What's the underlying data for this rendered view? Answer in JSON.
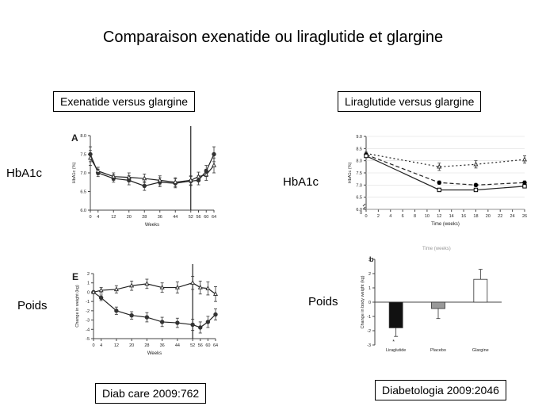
{
  "title": "Comparaison exenatide ou liraglutide  et glargine",
  "left_header": "Exenatide versus glargine",
  "right_header": "Liraglutide  versus glargine",
  "labels": {
    "hba1c_left": "HbA1c",
    "hba1c_right": "HbA1c",
    "poids_left": "Poids",
    "poids_right": "Poids"
  },
  "refs": {
    "left": "Diab care 2009:762",
    "right": "Diabetologia 2009:2046"
  },
  "chart_data": [
    {
      "id": "A",
      "type": "line",
      "panel_letter": "A",
      "xlabel": "Weeks",
      "ylabel": "HbA1c (%)",
      "xlim": [
        0,
        64
      ],
      "ylim": [
        6.0,
        8.0
      ],
      "xticks": [
        0,
        4,
        12,
        20,
        28,
        36,
        44,
        52,
        56,
        60,
        64
      ],
      "xtick_labels": [
        "0",
        "4",
        "12",
        "20",
        "28",
        "36",
        "44",
        "52",
        "56",
        "60",
        "64"
      ],
      "yticks": [
        6.0,
        6.5,
        7.0,
        7.5,
        8.0
      ],
      "ytick_labels": [
        "6.0",
        "6.5",
        "7.0",
        "7.5",
        "8.0"
      ],
      "vline": 52,
      "series": [
        {
          "marker": "circle",
          "x": [
            0,
            4,
            12,
            20,
            28,
            36,
            44,
            52,
            56,
            60,
            64
          ],
          "y": [
            7.5,
            7.0,
            6.85,
            6.8,
            6.65,
            6.75,
            6.72,
            6.78,
            6.8,
            7.05,
            7.5
          ],
          "err": [
            0.2,
            0.1,
            0.1,
            0.12,
            0.12,
            0.12,
            0.12,
            0.12,
            0.12,
            0.15,
            0.2
          ]
        },
        {
          "marker": "triangle",
          "x": [
            0,
            4,
            12,
            20,
            28,
            36,
            44,
            52,
            56,
            60,
            64
          ],
          "y": [
            7.4,
            7.05,
            6.9,
            6.88,
            6.85,
            6.8,
            6.75,
            6.8,
            6.9,
            6.95,
            7.2
          ],
          "err": [
            0.2,
            0.1,
            0.1,
            0.12,
            0.12,
            0.12,
            0.12,
            0.12,
            0.12,
            0.15,
            0.2
          ]
        }
      ]
    },
    {
      "id": "E",
      "type": "line",
      "panel_letter": "E",
      "xlabel": "Weeks",
      "ylabel": "Change in weight (kg)",
      "xlim": [
        0,
        64
      ],
      "ylim": [
        -5,
        2
      ],
      "xticks": [
        0,
        4,
        12,
        20,
        28,
        36,
        44,
        52,
        56,
        60,
        64
      ],
      "xtick_labels": [
        "0",
        "4",
        "12",
        "20",
        "28",
        "36",
        "44",
        "52",
        "56",
        "60",
        "64"
      ],
      "yticks": [
        -5,
        -4,
        -3,
        -2,
        -1,
        0,
        1,
        2
      ],
      "ytick_labels": [
        "-5",
        "-4",
        "-3",
        "-2",
        "-1",
        "0",
        "1",
        "2"
      ],
      "vline": 52,
      "series": [
        {
          "marker": "circle",
          "x": [
            0,
            4,
            12,
            20,
            28,
            36,
            44,
            52,
            56,
            60,
            64
          ],
          "y": [
            0,
            -0.6,
            -2.0,
            -2.5,
            -2.7,
            -3.2,
            -3.3,
            -3.5,
            -3.8,
            -3.2,
            -2.4
          ],
          "err": [
            0,
            0.3,
            0.4,
            0.4,
            0.5,
            0.5,
            0.5,
            0.6,
            0.6,
            0.6,
            0.6
          ]
        },
        {
          "marker": "triangle",
          "x": [
            0,
            4,
            12,
            20,
            28,
            36,
            44,
            52,
            56,
            60,
            64
          ],
          "y": [
            0,
            0.2,
            0.3,
            0.7,
            0.9,
            0.5,
            0.5,
            1.0,
            0.5,
            0.4,
            -0.2
          ],
          "err": [
            0,
            0.3,
            0.4,
            0.5,
            0.5,
            0.5,
            0.6,
            0.7,
            0.7,
            0.7,
            0.8
          ]
        }
      ]
    },
    {
      "id": "lira_hba1c",
      "type": "line",
      "xlabel": "Time (weeks)",
      "ylabel": "HbA1c (%)",
      "xlim": [
        0,
        26
      ],
      "ylim": [
        6.0,
        9.0
      ],
      "xticks": [
        0,
        2,
        4,
        6,
        8,
        10,
        12,
        14,
        16,
        18,
        20,
        22,
        24,
        26
      ],
      "xtick_labels": [
        "0",
        "2",
        "4",
        "6",
        "8",
        "10",
        "12",
        "14",
        "16",
        "18",
        "20",
        "22",
        "24",
        "26"
      ],
      "yticks": [
        6.0,
        6.5,
        7.0,
        7.5,
        8.0,
        8.5,
        9.0
      ],
      "ytick_labels": [
        "6.0",
        "6.5",
        "7.0",
        "7.5",
        "8.0",
        "8.5",
        "9.0"
      ],
      "y_break_label": "0",
      "series": [
        {
          "marker": "triangle",
          "dash": "2,3",
          "x": [
            0,
            12,
            18,
            26
          ],
          "y": [
            8.3,
            7.75,
            7.85,
            8.05
          ],
          "err": [
            0.05,
            0.15,
            0.15,
            0.15
          ]
        },
        {
          "marker": "dot",
          "dash": "5,3",
          "x": [
            0,
            12,
            18,
            26
          ],
          "y": [
            8.25,
            7.1,
            7.0,
            7.1
          ],
          "err": [
            0.05,
            0.07,
            0.07,
            0.07
          ]
        },
        {
          "marker": "square",
          "dash": "",
          "x": [
            0,
            12,
            18,
            26
          ],
          "y": [
            8.2,
            6.8,
            6.8,
            6.95
          ],
          "err": [
            0.05,
            0.07,
            0.07,
            0.07
          ]
        }
      ]
    },
    {
      "id": "lira_weight",
      "type": "bar",
      "panel_letter": "b",
      "faded_top_label": "Time (weeks)",
      "ylabel": "Change in body weight (kg)",
      "ylim": [
        -3,
        3
      ],
      "yticks": [
        -3,
        -2,
        -1,
        0,
        1,
        2,
        3
      ],
      "ytick_labels": [
        "-3",
        "-2",
        "-1",
        "0",
        "1",
        "2",
        "3"
      ],
      "categories": [
        "Liraglutide",
        "Placebo",
        "Glargine"
      ],
      "values": [
        -1.8,
        -0.45,
        1.6
      ],
      "errors": [
        0.6,
        0.7,
        0.7
      ],
      "fills": [
        "#111111",
        "#999999",
        "#ffffff"
      ],
      "star_label": "*"
    }
  ]
}
